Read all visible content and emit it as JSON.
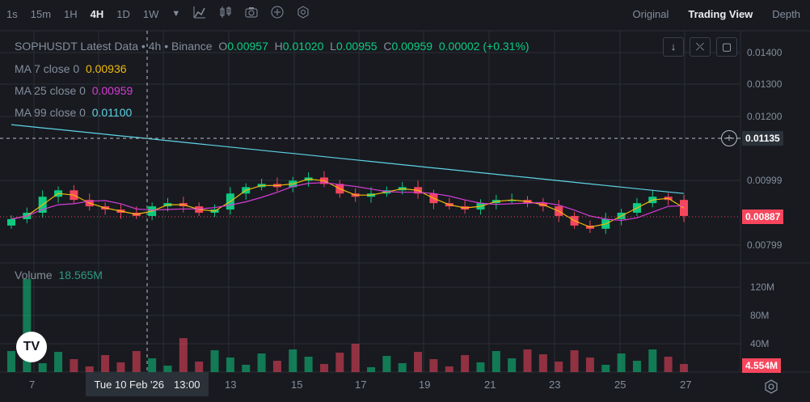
{
  "toolbar": {
    "timeframes": [
      "1s",
      "15m",
      "1H",
      "4H",
      "1D",
      "1W"
    ],
    "active_index": 3,
    "icons": [
      "chevron-down-icon",
      "line-tool-icon",
      "candle-type-icon",
      "camera-icon",
      "plus-circle-icon",
      "settings-icon"
    ]
  },
  "views": {
    "original": "Original",
    "trading_view": "Trading View",
    "depth": "Depth"
  },
  "legend": {
    "symbol": "SOPHUSDT Latest Data",
    "interval": "4h",
    "exchange": "Binance",
    "o_label": "O",
    "o": "0.00957",
    "h_label": "H",
    "h": "0.01020",
    "l_label": "L",
    "l": "0.00955",
    "c_label": "C",
    "c": "0.00959",
    "change": "0.00002 (+0.31%)"
  },
  "ma": [
    {
      "label": "MA 7 close 0",
      "value": "0.00936",
      "color": "#f0b90b"
    },
    {
      "label": "MA 25 close 0",
      "value": "0.00959",
      "color": "#d63cd6"
    },
    {
      "label": "MA 99 close 0",
      "value": "0.01100",
      "color": "#5ed3e6"
    }
  ],
  "volume": {
    "label": "Volume",
    "value": "18.565M"
  },
  "price_axis": [
    "0.01400",
    "0.01300",
    "0.01200",
    "0.00999",
    "0.00799"
  ],
  "volume_axis": [
    "120M",
    "80M",
    "40M"
  ],
  "crosshair_price": "0.01135",
  "last_price": "0.00887",
  "last_volume": "4.554M",
  "x_axis": [
    "7",
    "13",
    "15",
    "17",
    "19",
    "21",
    "23",
    "25",
    "27"
  ],
  "crosshair_date": "Tue 10 Feb '26",
  "crosshair_time": "13:00",
  "logo_text": "TV",
  "colors": {
    "up": "#0ecb81",
    "down": "#f6465d",
    "bg": "#181a20",
    "grid": "#2b2f36"
  },
  "chart_data": {
    "type": "candlestick",
    "y_axis_labels": [
      "0.01400",
      "0.01300",
      "0.01200",
      "0.00999",
      "0.00799"
    ],
    "close_series_approx": [
      0.0088,
      0.009,
      0.0095,
      0.0097,
      0.0094,
      0.0092,
      0.0091,
      0.009,
      0.0089,
      0.0092,
      0.0093,
      0.0092,
      0.009,
      0.0091,
      0.0096,
      0.0098,
      0.0099,
      0.0098,
      0.01,
      0.0101,
      0.0099,
      0.0096,
      0.0095,
      0.0096,
      0.0097,
      0.0098,
      0.0096,
      0.0093,
      0.0092,
      0.0091,
      0.0093,
      0.0094,
      0.0094,
      0.0093,
      0.0092,
      0.0089,
      0.0086,
      0.0085,
      0.0088,
      0.009,
      0.0093,
      0.0095,
      0.0094,
      0.0089
    ],
    "ma_series": [
      "MA 7",
      "MA 25",
      "MA 99"
    ]
  }
}
